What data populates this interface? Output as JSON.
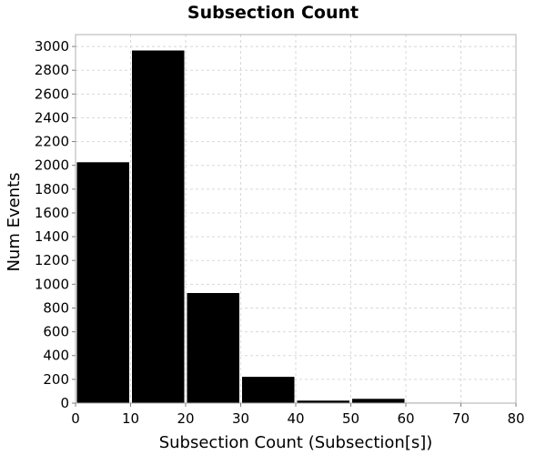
{
  "chart_data": {
    "type": "bar",
    "title": "Subsection Count",
    "xlabel": "Subsection Count (Subsection[s])",
    "ylabel": "Num Events",
    "xlim": [
      0,
      80
    ],
    "ylim": [
      0,
      3100
    ],
    "x_ticks": [
      0,
      10,
      20,
      30,
      40,
      50,
      60,
      70,
      80
    ],
    "y_ticks": [
      0,
      200,
      400,
      600,
      800,
      1000,
      1200,
      1400,
      1600,
      1800,
      2000,
      2200,
      2400,
      2600,
      2800,
      3000
    ],
    "grid": true,
    "bar_color": "#000000",
    "bins": [
      {
        "start": 0,
        "end": 10,
        "value": 2030
      },
      {
        "start": 10,
        "end": 20,
        "value": 2970
      },
      {
        "start": 20,
        "end": 30,
        "value": 930
      },
      {
        "start": 30,
        "end": 40,
        "value": 225
      },
      {
        "start": 40,
        "end": 50,
        "value": 25
      },
      {
        "start": 50,
        "end": 60,
        "value": 40
      },
      {
        "start": 60,
        "end": 70,
        "value": 8
      },
      {
        "start": 70,
        "end": 80,
        "value": 2
      }
    ]
  }
}
